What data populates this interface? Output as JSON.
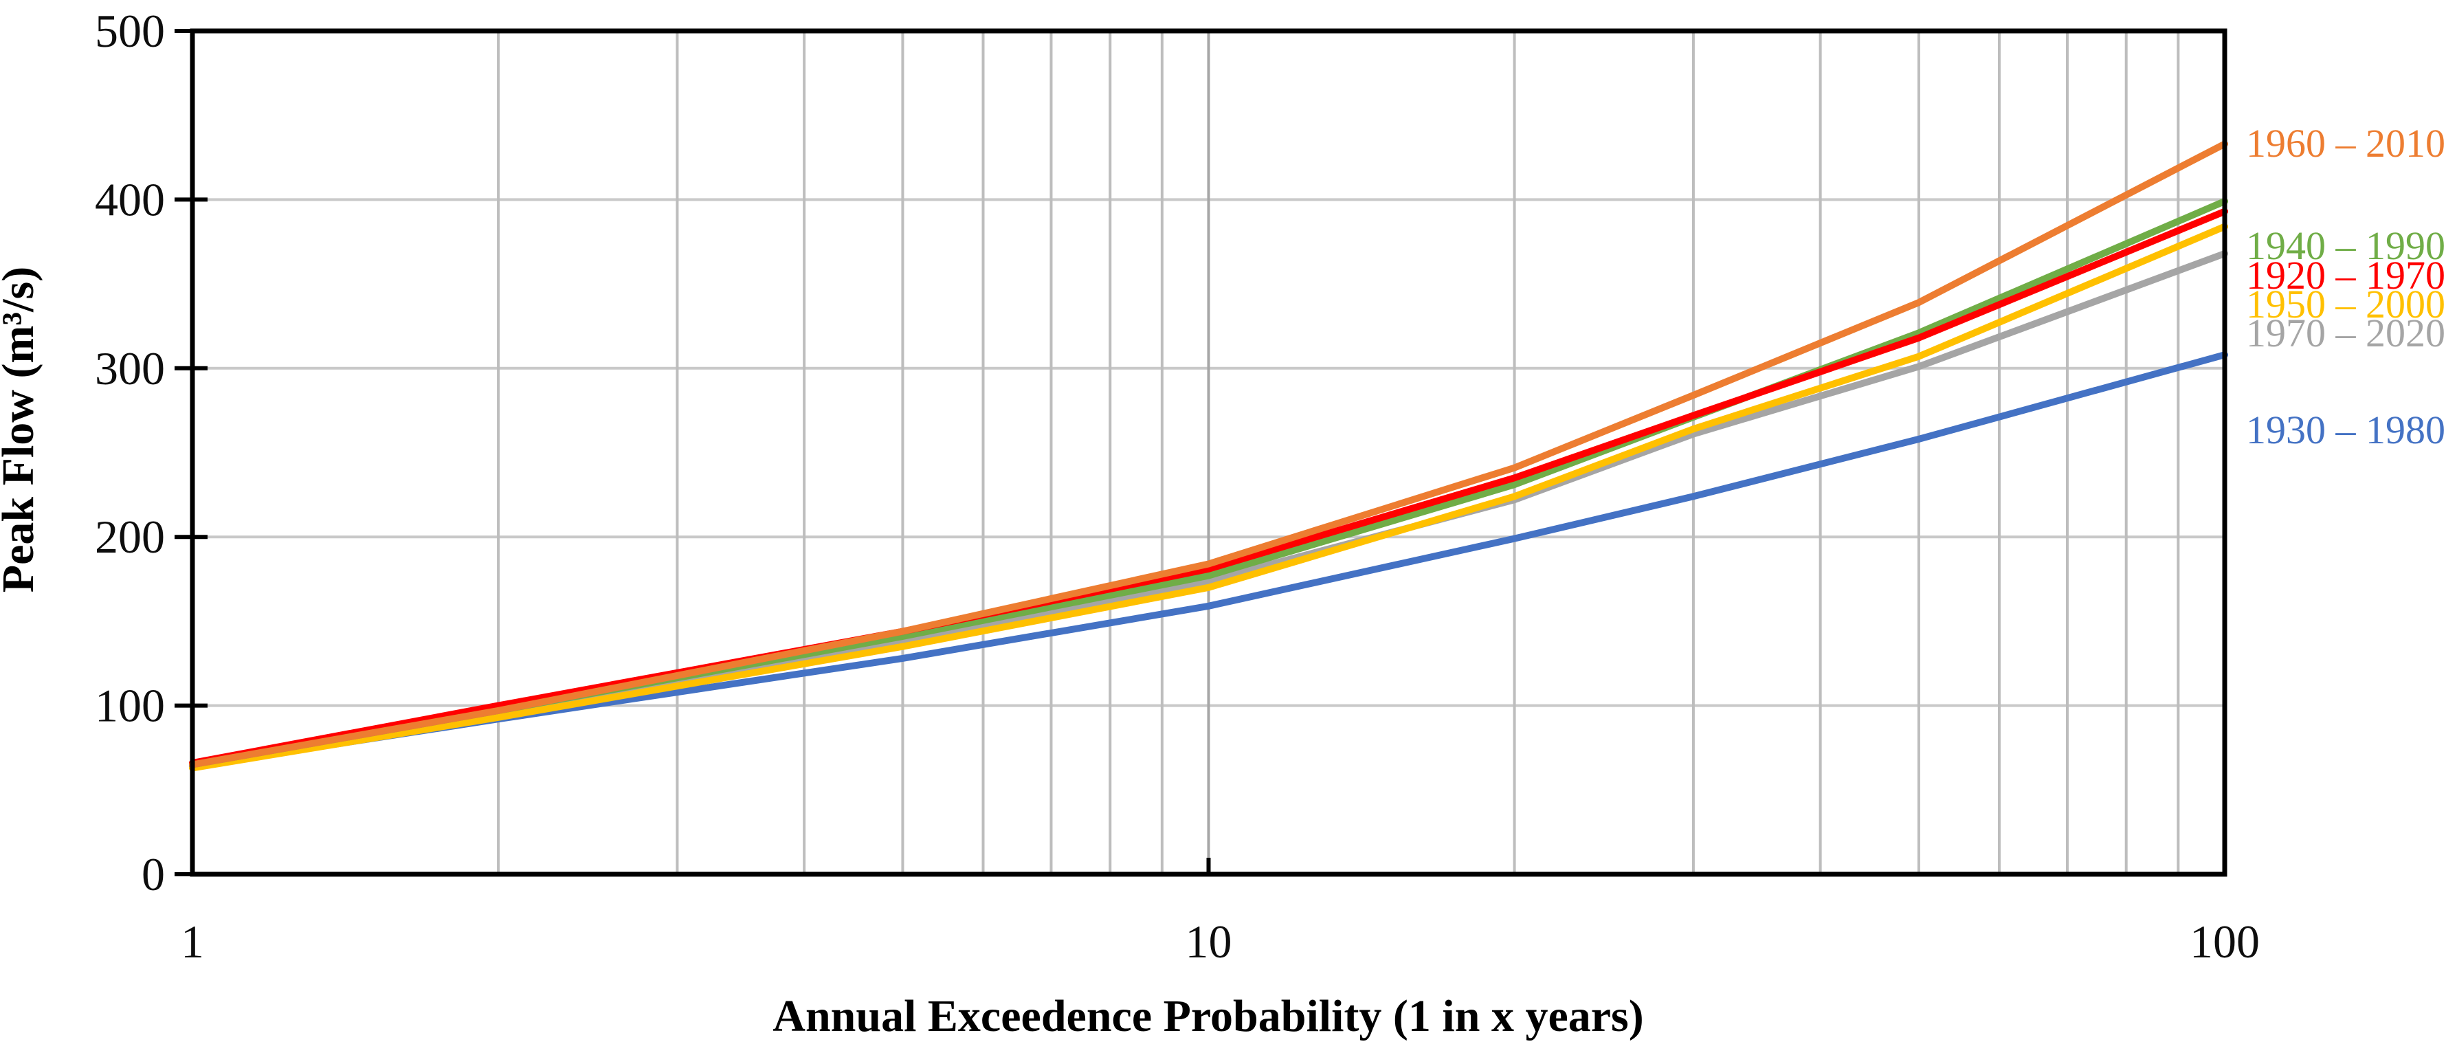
{
  "chart_data": {
    "type": "line",
    "title": "",
    "xlabel": "Annual Exceedence Probability (1 in x years)",
    "ylabel": "Peak Flow (m³/s)",
    "x_scale": "log",
    "xlim": [
      1,
      100
    ],
    "ylim": [
      0,
      500
    ],
    "x_tick_labels": [
      "1",
      "10",
      "100"
    ],
    "x_tick_values": [
      1,
      10,
      100
    ],
    "y_tick_labels": [
      "0",
      "100",
      "200",
      "300",
      "400",
      "500"
    ],
    "y_tick_values": [
      0,
      100,
      200,
      300,
      400,
      500
    ],
    "grid": "on",
    "legend_position": "right-outside",
    "x": [
      1,
      2,
      5,
      10,
      20,
      30,
      50,
      100
    ],
    "series": [
      {
        "name": "1960 – 2010",
        "color": "#ED7D31",
        "values": [
          65,
          97,
          144,
          184,
          241,
          284,
          339,
          433
        ]
      },
      {
        "name": "1940 – 1990",
        "color": "#70AD47",
        "values": [
          65,
          97,
          141,
          177,
          231,
          271,
          321,
          399
        ]
      },
      {
        "name": "1920 – 1970",
        "color": "#FF0000",
        "values": [
          66,
          100,
          144,
          181,
          235,
          272,
          318,
          393
        ]
      },
      {
        "name": "1950 – 2000",
        "color": "#FFC000",
        "values": [
          63,
          93,
          135,
          170,
          224,
          264,
          307,
          384
        ]
      },
      {
        "name": "1970 – 2020",
        "color": "#A5A5A5",
        "values": [
          65,
          95,
          138,
          174,
          222,
          261,
          301,
          368
        ]
      },
      {
        "name": "1930 – 1980",
        "color": "#4472C4",
        "values": [
          64,
          92,
          128,
          159,
          199,
          224,
          258,
          308
        ]
      }
    ],
    "style": {
      "minor_grid_color": "#BDBDBD",
      "major_grid_color": "#A6A6A6",
      "horizontal_grid_color": "#C9C9C9",
      "axis_color": "#000000",
      "background": "#FFFFFF"
    }
  }
}
